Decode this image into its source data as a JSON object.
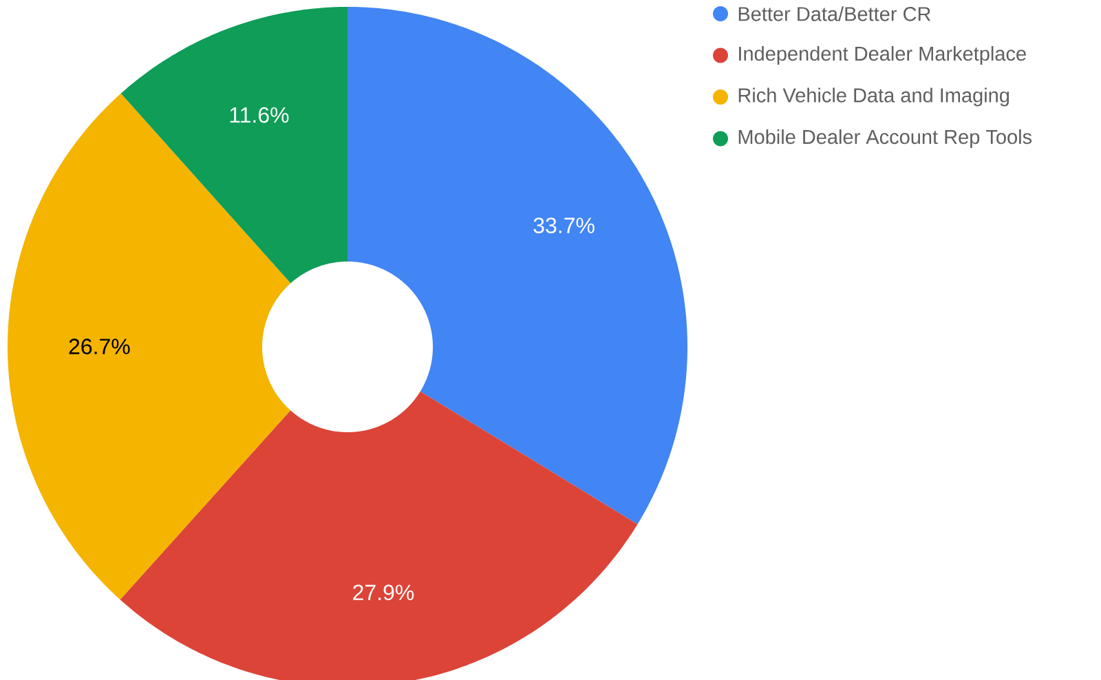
{
  "chart_data": {
    "type": "donut",
    "categories": [
      "Better Data/Better CR",
      "Independent Dealer Marketplace",
      "Rich Vehicle Data and Imaging",
      "Mobile Dealer Account Rep Tools"
    ],
    "values": [
      33.7,
      27.9,
      26.7,
      11.6
    ],
    "colors": [
      "#4285f4",
      "#db4437",
      "#f4b400",
      "#0f9d58"
    ],
    "value_labels": [
      "33.7%",
      "27.9%",
      "26.7%",
      "11.6%"
    ],
    "legend": "top right"
  }
}
